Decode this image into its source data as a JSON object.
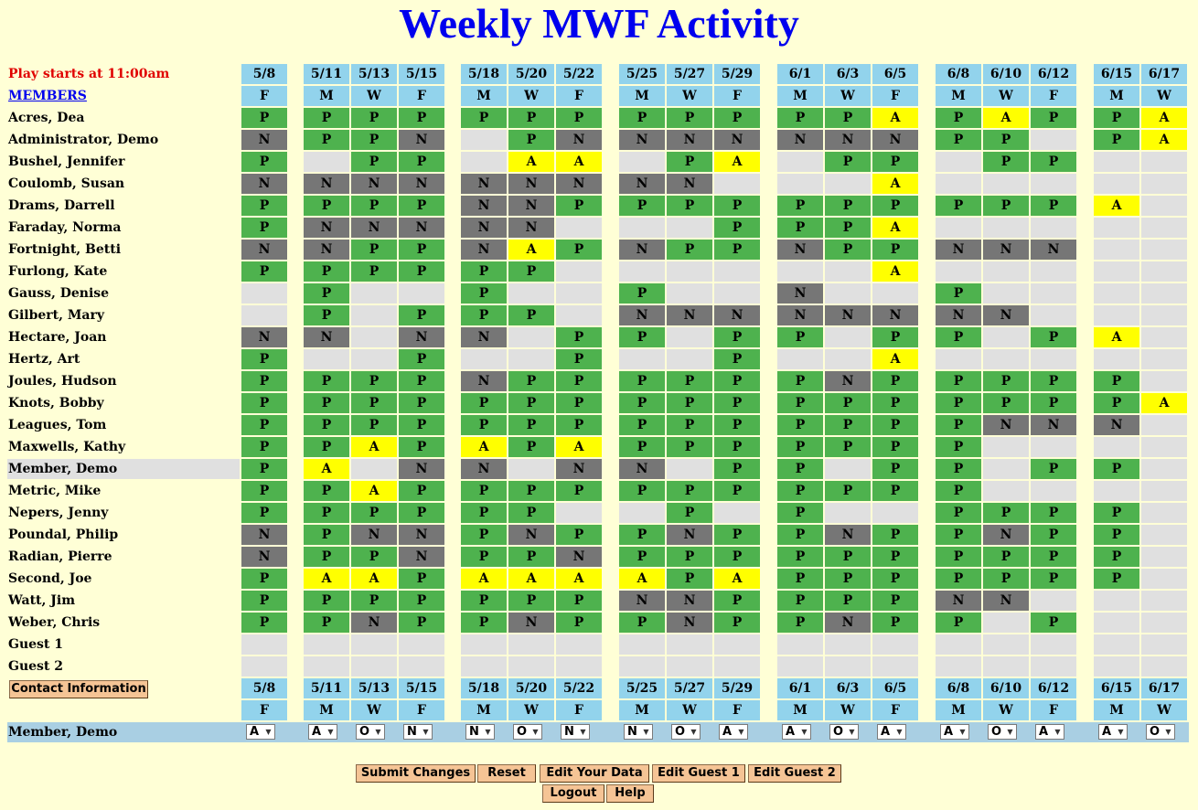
{
  "title": "Weekly MWF Activity",
  "play_start": "Play starts at 11:00am",
  "members_link": "MEMBERS",
  "dates": [
    "5/8",
    "5/11",
    "5/13",
    "5/15",
    "5/18",
    "5/20",
    "5/22",
    "5/25",
    "5/27",
    "5/29",
    "6/1",
    "6/3",
    "6/5",
    "6/8",
    "6/10",
    "6/12",
    "6/15",
    "6/17"
  ],
  "days": [
    "F",
    "M",
    "W",
    "F",
    "M",
    "W",
    "F",
    "M",
    "W",
    "F",
    "M",
    "W",
    "F",
    "M",
    "W",
    "F",
    "M",
    "W"
  ],
  "status_legend": {
    "P": "#4eb24e",
    "N": "#767676",
    "A": "#ffff00",
    "blank": "#e0e0e0"
  },
  "members": [
    {
      "name": "Acres, Dea",
      "codes": "PPPPPPPPPPPPAPAPPA"
    },
    {
      "name": "Administrator, Demo",
      "codes": "NPPN.PNNNNNNNPP.PA"
    },
    {
      "name": "Bushel, Jennifer",
      "codes": "P.PP.AA.PA.PP.PP.."
    },
    {
      "name": "Coulomb, Susan",
      "codes": "NNNNNNNNN...A....."
    },
    {
      "name": "Drams, Darrell",
      "codes": "PPPPNNPPPPPPPPPPA."
    },
    {
      "name": "Faraday, Norma",
      "codes": "PNNNNN...PPPA....."
    },
    {
      "name": "Fortnight, Betti",
      "codes": "NNPPNAPNPPNPPNNN.."
    },
    {
      "name": "Furlong, Kate",
      "codes": "PPPPPP......A....."
    },
    {
      "name": "Gauss, Denise",
      ".codes": "",
      "codes": ".P..P..P..N..P...."
    },
    {
      "name": "Gilbert, Mary",
      "codes": ".P.PPP.NNNNNNNN..."
    },
    {
      "name": "Hectare, Joan",
      "codes": "NN.NN.PP.PP.PP.PA."
    },
    {
      "name": "Hertz, Art",
      "codes": "P..P..P..P..A....."
    },
    {
      "name": "Joules, Hudson",
      "codes": "PPPPNPPPPPPNPPPPP."
    },
    {
      "name": "Knots, Bobby",
      "codes": "PPPPPPPPPPPPPPPPPA"
    },
    {
      "name": "Leagues, Tom",
      "codes": "PPPPPPPPPPPPPPNNN."
    },
    {
      "name": "Maxwells, Kathy",
      "codes": "PPAPAPAPPPPPPP...."
    },
    {
      "name": "Member, Demo",
      "codes": "PA.NN.NN.PP.PP.PP.",
      "highlight": true
    },
    {
      "name": "Metric, Mike",
      "codes": "PPAPPPPPPPPPPP...."
    },
    {
      "name": "Nepers, Jenny",
      "codes": "PPPPPP..P.P..PPPP."
    },
    {
      "name": "Poundal, Philip",
      "codes": "NPNNPNPPNPPNPPNPP."
    },
    {
      "name": "Radian, Pierre",
      "codes": "NPPNPPNPPPPPPPPPP."
    },
    {
      "name": "Second, Joe",
      "codes": "PAAPAAAAPAPPPPPPP."
    },
    {
      "name": "Watt, Jim",
      "codes": "PPPPPPPNNPPPPNN..."
    },
    {
      "name": "Weber, Chris",
      "codes": "PPNPPNPPNPPNPP.P.."
    },
    {
      "name": "Guest 1",
      "codes": ".................."
    },
    {
      "name": "Guest 2",
      "codes": ".................."
    }
  ],
  "contact_button": "Contact Information",
  "selector_row": {
    "name": "Member, Demo",
    "values": [
      "A",
      "A",
      "O",
      "N",
      "N",
      "O",
      "N",
      "N",
      "O",
      "A",
      "A",
      "O",
      "A",
      "A",
      "O",
      "A",
      "A",
      "O"
    ]
  },
  "buttons": {
    "submit": "Submit Changes",
    "reset": "Reset",
    "edit_data": "Edit Your Data",
    "edit_guest1": "Edit Guest 1",
    "edit_guest2": "Edit Guest 2",
    "logout": "Logout",
    "help": "Help"
  }
}
